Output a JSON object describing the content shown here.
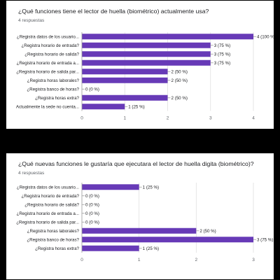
{
  "colors": {
    "bar": "#673ab7",
    "text": "#202124",
    "muted": "#5f6368",
    "grid": "#e0e0e0",
    "axis": "#9e9e9e"
  },
  "chart_data": [
    {
      "type": "bar",
      "orientation": "horizontal",
      "title": "¿Qué funciones tiene el lector de huella (biométrico) actualmente usa?",
      "subtitle": "4 respuestas",
      "categories": [
        "¿Registra datos de los usuario...",
        "¿Registra horario de entrada?",
        "¿Registra horario de salida?",
        "¿Registra horario de entrada a...",
        "¿Registra horario de salida par...",
        "¿Registra horas laborales?",
        "¿Registra banco de horas?",
        "¿Registra horas extra?",
        "Actualmente la sede no cuenta..."
      ],
      "values": [
        4,
        3,
        3,
        3,
        2,
        2,
        0,
        2,
        1
      ],
      "data_labels": [
        "4 (100 %)",
        "3 (75 %)",
        "3 (75 %)",
        "3 (75 %)",
        "2 (50 %)",
        "2 (50 %)",
        "0 (0 %)",
        "2 (50 %)",
        "1 (25 %)"
      ],
      "xlim": [
        0,
        4
      ],
      "x_ticks": [
        "0",
        "1",
        "2",
        "3",
        "4"
      ],
      "grid": true
    },
    {
      "type": "bar",
      "orientation": "horizontal",
      "title": "¿Qué nuevas funciones le gustaría que ejecutara el lector de huella digita (biométrico)?",
      "subtitle": "4 respuestas",
      "categories": [
        "¿Registra datos de los usuario...",
        "¿Registra horario de entrada?",
        "¿Registra horario de salida?",
        "¿Registra horario de entrada a...",
        "¿Registra horario de salida par...",
        "¿Registra horas laborales?",
        "¿Registra banco de horas?",
        "¿Registra horas extra?"
      ],
      "values": [
        1,
        0,
        0,
        0,
        0,
        2,
        3,
        1
      ],
      "data_labels": [
        "1 (25 %)",
        "0 (0 %)",
        "0 (0 %)",
        "0 (0 %)",
        "0 (0 %)",
        "2 (50 %)",
        "3 (75 %)",
        "1 (25 %)"
      ],
      "xlim": [
        0,
        3
      ],
      "x_ticks": [
        "0",
        "1",
        "2",
        "3"
      ],
      "grid": true
    }
  ]
}
